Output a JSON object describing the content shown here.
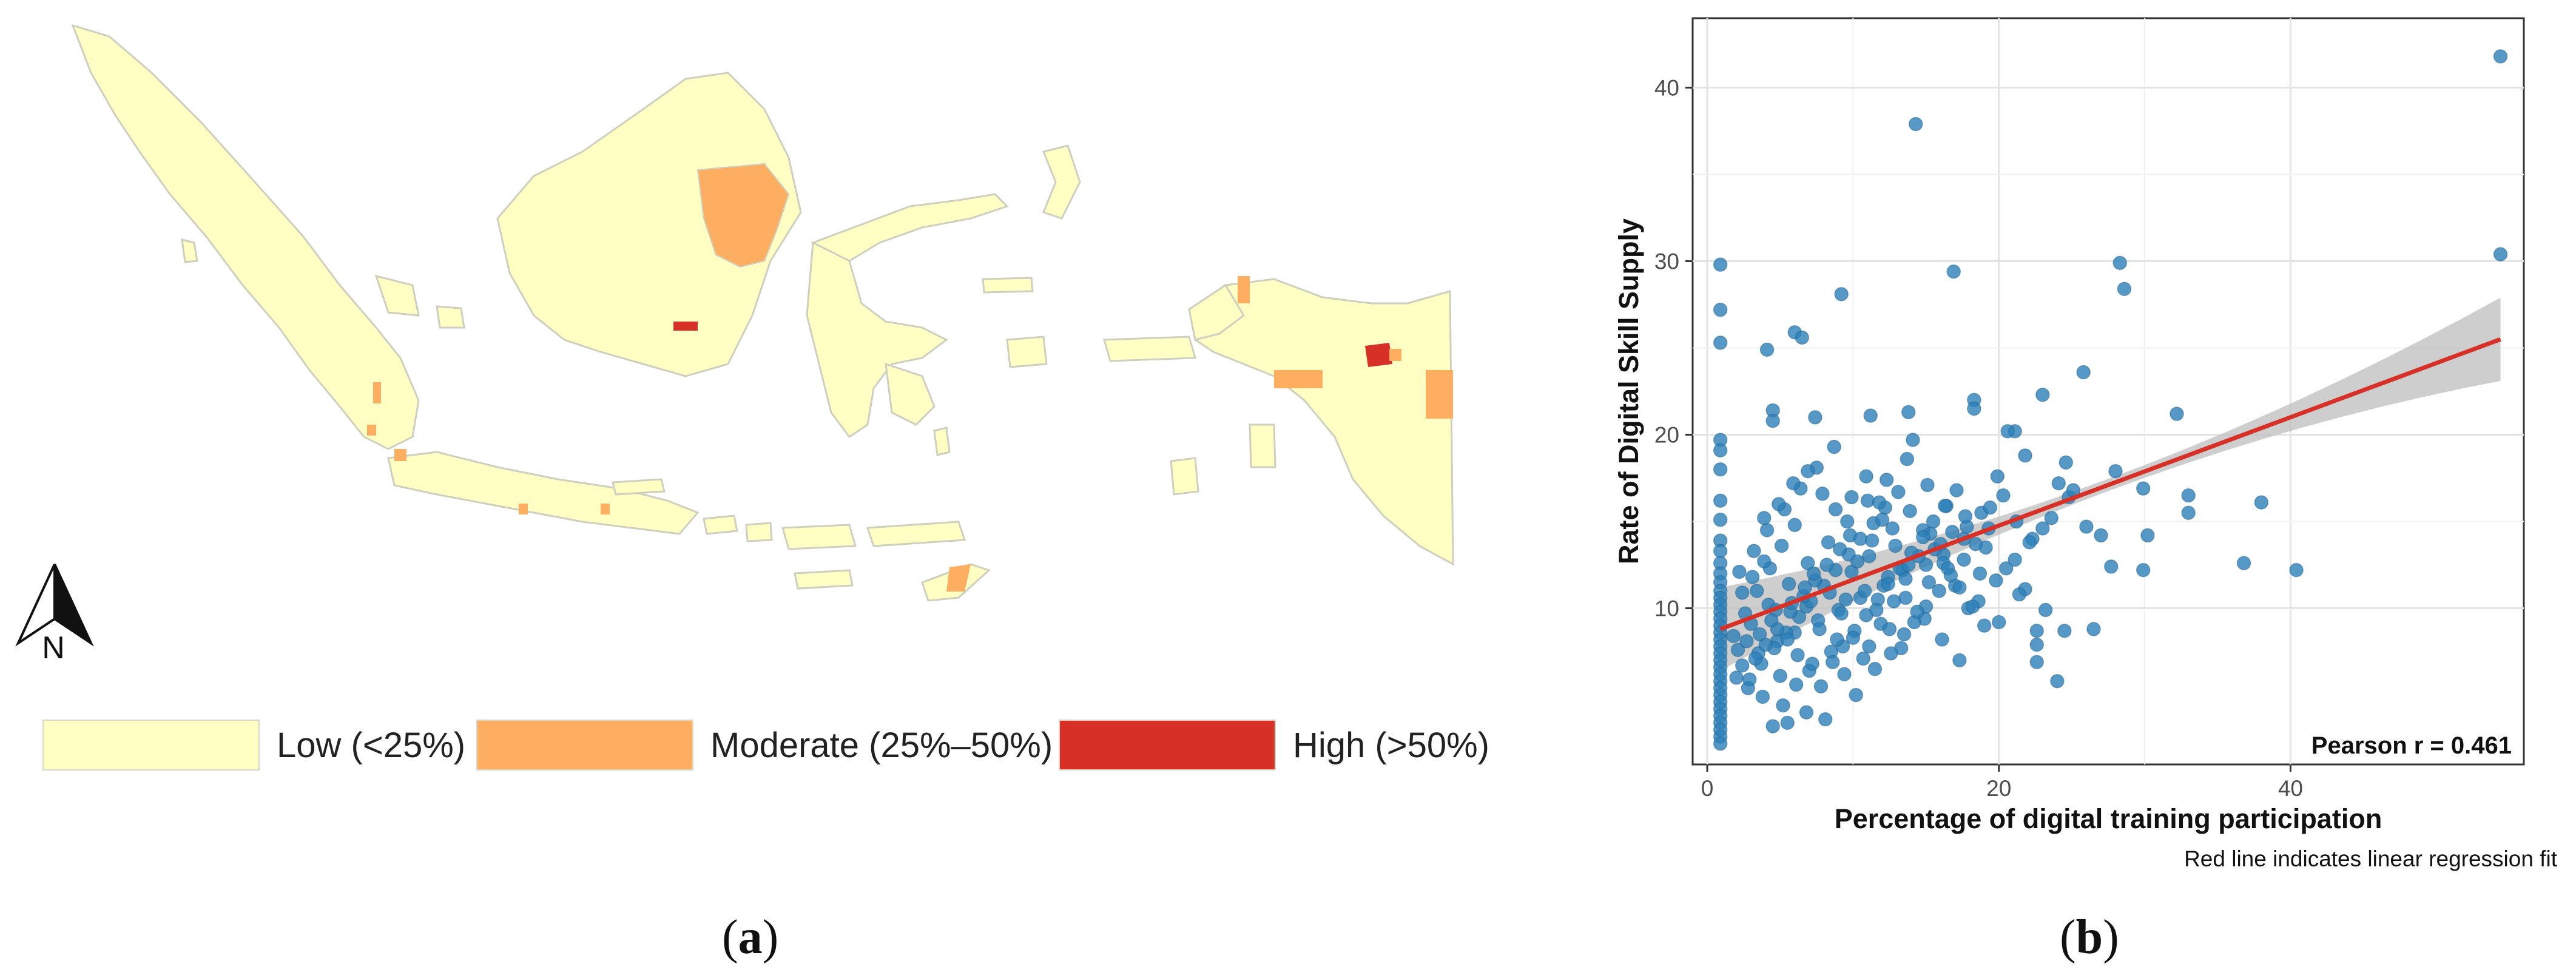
{
  "map": {
    "legend": [
      {
        "label": "Low (<25%)",
        "color": "#ffffc4"
      },
      {
        "label": "Moderate (25%–50%)",
        "color": "#fdae61"
      },
      {
        "label": "High (>50%)",
        "color": "#d73027"
      }
    ],
    "north_label": "N",
    "panel_label": "a"
  },
  "chart_data": {
    "type": "scatter",
    "xlabel": "Percentage of digital training participation",
    "ylabel": "Rate of Digital Skill Supply",
    "xlim": [
      -1,
      56
    ],
    "ylim": [
      1,
      44
    ],
    "x_ticks": [
      0,
      20,
      40
    ],
    "y_ticks": [
      10,
      20,
      30,
      40
    ],
    "grid": true,
    "point_color": "#2c7fb8",
    "line_color": "#d73027",
    "band_color": "#bdbdbd",
    "regression": {
      "x0": 0.9,
      "y0": 8.8,
      "x1": 54.4,
      "y1": 25.5,
      "band_lo_end": 23.2,
      "band_hi_end": 28.0
    },
    "annotation": "Pearson r = 0.461",
    "caption": "Red line indicates linear regression fit",
    "panel_label": "b",
    "points": [
      [
        0.9,
        29.8
      ],
      [
        0.9,
        27.2
      ],
      [
        0.9,
        25.3
      ],
      [
        0.9,
        19.7
      ],
      [
        0.9,
        19.1
      ],
      [
        0.9,
        18.0
      ],
      [
        0.9,
        16.2
      ],
      [
        0.9,
        15.1
      ],
      [
        0.9,
        13.9
      ],
      [
        0.9,
        13.3
      ],
      [
        0.9,
        12.6
      ],
      [
        0.9,
        12.0
      ],
      [
        0.9,
        11.5
      ],
      [
        0.9,
        11.0
      ],
      [
        0.9,
        10.6
      ],
      [
        0.9,
        10.2
      ],
      [
        0.9,
        9.8
      ],
      [
        0.9,
        9.4
      ],
      [
        0.9,
        9.0
      ],
      [
        0.9,
        8.6
      ],
      [
        0.9,
        8.2
      ],
      [
        0.9,
        7.8
      ],
      [
        0.9,
        7.4
      ],
      [
        0.9,
        7.0
      ],
      [
        0.9,
        6.6
      ],
      [
        0.9,
        6.2
      ],
      [
        0.9,
        5.8
      ],
      [
        0.9,
        5.4
      ],
      [
        0.9,
        5.0
      ],
      [
        0.9,
        4.6
      ],
      [
        0.9,
        4.2
      ],
      [
        0.9,
        3.8
      ],
      [
        0.9,
        3.4
      ],
      [
        0.9,
        3.0
      ],
      [
        0.9,
        2.6
      ],
      [
        0.9,
        2.2
      ],
      [
        54.4,
        41.8
      ],
      [
        54.4,
        30.4
      ],
      [
        14.3,
        37.9
      ],
      [
        16.9,
        29.4
      ],
      [
        28.3,
        29.9
      ],
      [
        28.6,
        28.4
      ],
      [
        9.2,
        28.1
      ],
      [
        6.0,
        25.9
      ],
      [
        6.5,
        25.6
      ],
      [
        4.1,
        24.9
      ],
      [
        25.8,
        23.6
      ],
      [
        23.0,
        22.3
      ],
      [
        32.2,
        21.2
      ],
      [
        18.3,
        22.0
      ],
      [
        18.3,
        21.5
      ],
      [
        13.8,
        21.3
      ],
      [
        7.4,
        21.0
      ],
      [
        11.2,
        21.1
      ],
      [
        4.5,
        21.4
      ],
      [
        4.5,
        20.8
      ],
      [
        14.1,
        19.7
      ],
      [
        21.1,
        20.2
      ],
      [
        21.8,
        18.8
      ],
      [
        24.6,
        18.4
      ],
      [
        28.0,
        17.9
      ],
      [
        33.0,
        16.5
      ],
      [
        33.0,
        15.5
      ],
      [
        38.0,
        16.1
      ],
      [
        36.8,
        12.6
      ],
      [
        40.4,
        12.2
      ],
      [
        27.0,
        14.2
      ],
      [
        30.2,
        14.2
      ],
      [
        27.7,
        12.4
      ],
      [
        29.9,
        12.2
      ],
      [
        29.9,
        16.9
      ],
      [
        26.5,
        8.8
      ],
      [
        24.0,
        5.8
      ],
      [
        22.6,
        6.9
      ],
      [
        22.6,
        7.9
      ],
      [
        22.6,
        8.7
      ],
      [
        20.6,
        20.2
      ],
      [
        19.9,
        17.6
      ],
      [
        18.8,
        15.5
      ],
      [
        17.6,
        14.0
      ],
      [
        16.2,
        13.1
      ],
      [
        15.0,
        12.5
      ],
      [
        13.4,
        12.2
      ],
      [
        12.1,
        11.3
      ],
      [
        10.5,
        10.6
      ],
      [
        9.0,
        9.9
      ],
      [
        7.6,
        9.3
      ],
      [
        6.0,
        8.6
      ],
      [
        4.8,
        8.1
      ],
      [
        3.5,
        7.4
      ],
      [
        2.4,
        6.7
      ],
      [
        2.0,
        6.0
      ],
      [
        2.8,
        5.4
      ],
      [
        3.8,
        4.9
      ],
      [
        5.2,
        4.4
      ],
      [
        6.8,
        4.0
      ],
      [
        8.1,
        3.6
      ],
      [
        4.5,
        3.2
      ],
      [
        5.5,
        3.4
      ],
      [
        3.0,
        9.1
      ],
      [
        4.2,
        10.2
      ],
      [
        5.6,
        11.4
      ],
      [
        6.9,
        12.6
      ],
      [
        8.3,
        13.8
      ],
      [
        9.6,
        15.0
      ],
      [
        11.0,
        16.2
      ],
      [
        12.3,
        17.4
      ],
      [
        13.7,
        18.6
      ],
      [
        15.1,
        17.1
      ],
      [
        16.4,
        15.9
      ],
      [
        17.8,
        14.7
      ],
      [
        19.1,
        13.5
      ],
      [
        20.5,
        12.3
      ],
      [
        21.8,
        11.1
      ],
      [
        23.2,
        9.9
      ],
      [
        24.5,
        8.7
      ],
      [
        2.2,
        12.1
      ],
      [
        3.2,
        13.3
      ],
      [
        4.1,
        14.5
      ],
      [
        5.3,
        15.7
      ],
      [
        6.4,
        16.9
      ],
      [
        7.5,
        18.1
      ],
      [
        8.7,
        19.3
      ],
      [
        9.8,
        14.2
      ],
      [
        11.1,
        13.0
      ],
      [
        12.4,
        11.8
      ],
      [
        13.6,
        10.6
      ],
      [
        14.9,
        9.4
      ],
      [
        16.1,
        8.2
      ],
      [
        17.3,
        7.0
      ],
      [
        18.6,
        10.4
      ],
      [
        19.8,
        11.6
      ],
      [
        21.1,
        12.8
      ],
      [
        22.3,
        14.0
      ],
      [
        23.6,
        15.2
      ],
      [
        24.8,
        16.4
      ],
      [
        1.8,
        8.4
      ],
      [
        2.6,
        9.7
      ],
      [
        3.4,
        11.0
      ],
      [
        4.3,
        12.3
      ],
      [
        5.1,
        13.6
      ],
      [
        6.0,
        14.8
      ],
      [
        6.8,
        10.1
      ],
      [
        7.7,
        8.8
      ],
      [
        8.5,
        7.5
      ],
      [
        9.4,
        6.2
      ],
      [
        10.2,
        5.0
      ],
      [
        11.1,
        7.8
      ],
      [
        11.9,
        9.1
      ],
      [
        12.8,
        10.4
      ],
      [
        13.6,
        11.7
      ],
      [
        14.5,
        13.0
      ],
      [
        15.3,
        14.3
      ],
      [
        16.2,
        12.6
      ],
      [
        17.0,
        11.3
      ],
      [
        17.9,
        10.0
      ],
      [
        2.9,
        5.9
      ],
      [
        3.7,
        6.8
      ],
      [
        4.6,
        7.7
      ],
      [
        5.4,
        8.6
      ],
      [
        6.3,
        9.5
      ],
      [
        7.1,
        10.4
      ],
      [
        8.0,
        11.3
      ],
      [
        8.8,
        12.2
      ],
      [
        9.7,
        13.1
      ],
      [
        10.5,
        14.0
      ],
      [
        11.4,
        14.9
      ],
      [
        12.2,
        15.8
      ],
      [
        13.1,
        16.7
      ],
      [
        13.9,
        15.6
      ],
      [
        14.8,
        14.5
      ],
      [
        15.6,
        13.4
      ],
      [
        16.5,
        12.3
      ],
      [
        17.3,
        11.2
      ],
      [
        18.2,
        10.1
      ],
      [
        19.0,
        9.0
      ],
      [
        2.4,
        10.9
      ],
      [
        3.1,
        11.8
      ],
      [
        3.9,
        12.7
      ],
      [
        4.7,
        9.9
      ],
      [
        5.5,
        8.2
      ],
      [
        6.2,
        7.3
      ],
      [
        7.0,
        6.4
      ],
      [
        7.8,
        5.5
      ],
      [
        8.6,
        6.9
      ],
      [
        9.3,
        7.8
      ],
      [
        10.1,
        8.7
      ],
      [
        10.9,
        9.6
      ],
      [
        11.7,
        10.5
      ],
      [
        12.4,
        11.4
      ],
      [
        13.2,
        12.3
      ],
      [
        14.0,
        13.2
      ],
      [
        14.8,
        14.1
      ],
      [
        15.5,
        15.0
      ],
      [
        16.3,
        15.9
      ],
      [
        17.1,
        16.8
      ],
      [
        3.3,
        7.1
      ],
      [
        4.0,
        7.9
      ],
      [
        4.8,
        8.8
      ],
      [
        5.7,
        9.8
      ],
      [
        6.6,
        10.7
      ],
      [
        7.4,
        11.6
      ],
      [
        8.2,
        12.5
      ],
      [
        9.1,
        13.4
      ],
      [
        9.9,
        12.1
      ],
      [
        10.8,
        11.0
      ],
      [
        11.6,
        9.9
      ],
      [
        12.5,
        8.8
      ],
      [
        13.3,
        7.7
      ],
      [
        14.2,
        9.2
      ],
      [
        15.0,
        10.1
      ],
      [
        15.9,
        11.0
      ],
      [
        16.7,
        11.9
      ],
      [
        17.6,
        12.8
      ],
      [
        18.4,
        13.7
      ],
      [
        19.3,
        14.6
      ],
      [
        2.1,
        7.6
      ],
      [
        2.7,
        8.1
      ],
      [
        3.6,
        8.5
      ],
      [
        4.4,
        9.3
      ],
      [
        5.8,
        10.3
      ],
      [
        6.7,
        11.2
      ],
      [
        7.3,
        12.0
      ],
      [
        8.4,
        10.9
      ],
      [
        9.2,
        9.7
      ],
      [
        10.0,
        8.3
      ],
      [
        10.7,
        7.1
      ],
      [
        11.5,
        6.5
      ],
      [
        12.6,
        7.4
      ],
      [
        13.5,
        8.5
      ],
      [
        14.4,
        9.8
      ],
      [
        15.2,
        11.5
      ],
      [
        16.0,
        13.7
      ],
      [
        16.8,
        14.4
      ],
      [
        17.7,
        15.3
      ],
      [
        18.7,
        12.0
      ],
      [
        5.0,
        6.1
      ],
      [
        6.1,
        5.6
      ],
      [
        7.2,
        6.8
      ],
      [
        8.9,
        8.2
      ],
      [
        9.5,
        10.5
      ],
      [
        10.3,
        12.7
      ],
      [
        11.3,
        13.9
      ],
      [
        12.0,
        15.1
      ],
      [
        12.9,
        13.6
      ],
      [
        13.8,
        12.5
      ],
      [
        3.9,
        15.2
      ],
      [
        4.9,
        16.0
      ],
      [
        5.9,
        17.2
      ],
      [
        6.9,
        17.9
      ],
      [
        7.9,
        16.6
      ],
      [
        8.8,
        15.7
      ],
      [
        9.9,
        16.4
      ],
      [
        10.9,
        17.6
      ],
      [
        11.8,
        16.1
      ],
      [
        12.7,
        14.6
      ],
      [
        19.4,
        15.8
      ],
      [
        20.3,
        16.5
      ],
      [
        21.2,
        15.0
      ],
      [
        22.1,
        13.8
      ],
      [
        23.0,
        14.6
      ],
      [
        24.1,
        17.2
      ],
      [
        25.1,
        16.8
      ],
      [
        26.0,
        14.7
      ],
      [
        20.0,
        9.2
      ],
      [
        21.4,
        10.8
      ]
    ]
  }
}
